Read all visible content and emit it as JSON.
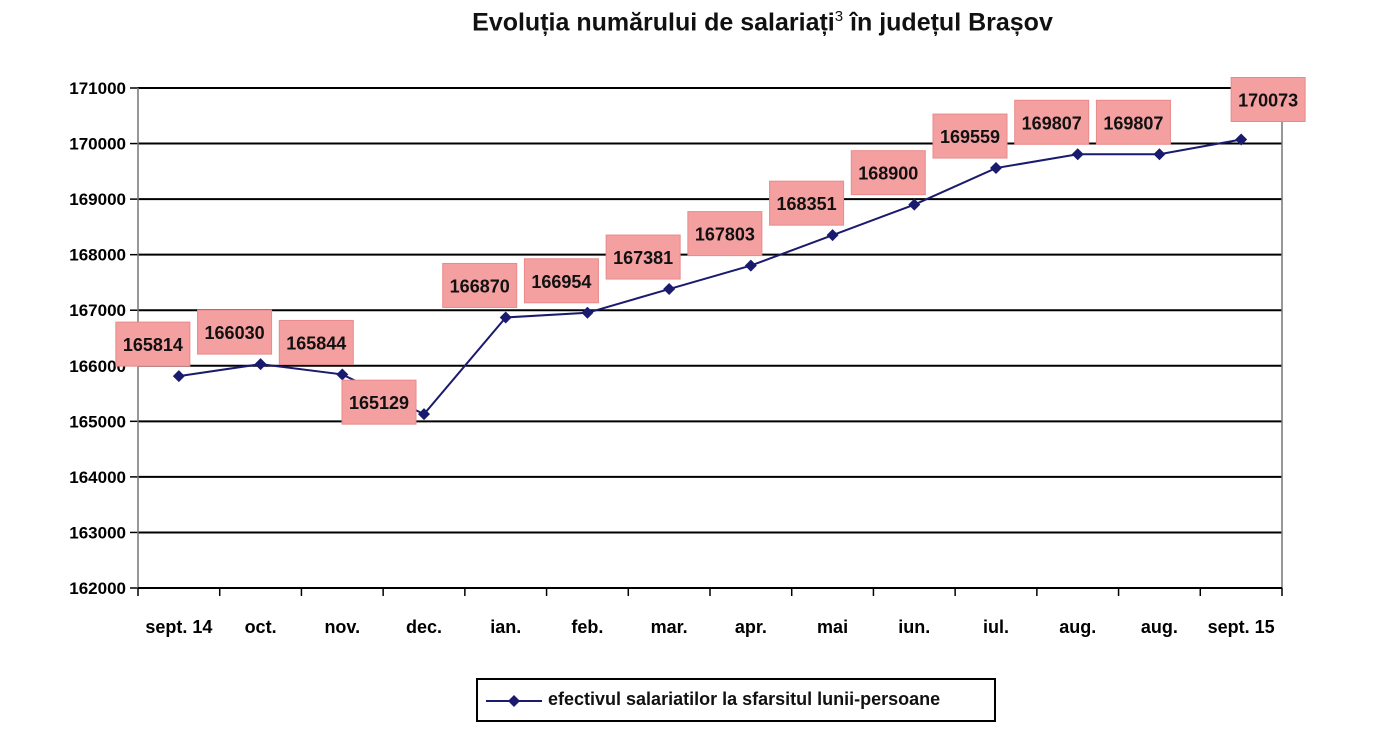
{
  "chart_data": {
    "type": "line",
    "title": "Evoluția numărului de salariați",
    "title_superscript": "3",
    "title_suffix": " în județul Brașov",
    "categories": [
      "sept. 14",
      "oct.",
      "nov.",
      "dec.",
      "ian.",
      "feb.",
      "mar.",
      "apr.",
      "mai",
      "iun.",
      "iul.",
      "aug.",
      "aug.",
      "sept. 15"
    ],
    "series": [
      {
        "name": "efectivul salariatilor la sfarsitul lunii-persoane",
        "values": [
          165814,
          166030,
          165844,
          165129,
          166870,
          166954,
          167381,
          167803,
          168351,
          168900,
          169559,
          169807,
          169807,
          170073
        ],
        "color": "#1a1a6e"
      }
    ],
    "ylim": [
      162000,
      171000
    ],
    "yticks": [
      "171000",
      "170000",
      "169000",
      "168000",
      "167000",
      "166000",
      "165000",
      "164000",
      "163000",
      "162000"
    ],
    "grid": true,
    "legend_position": "bottom",
    "data_label_background": "#f4a0a0"
  }
}
